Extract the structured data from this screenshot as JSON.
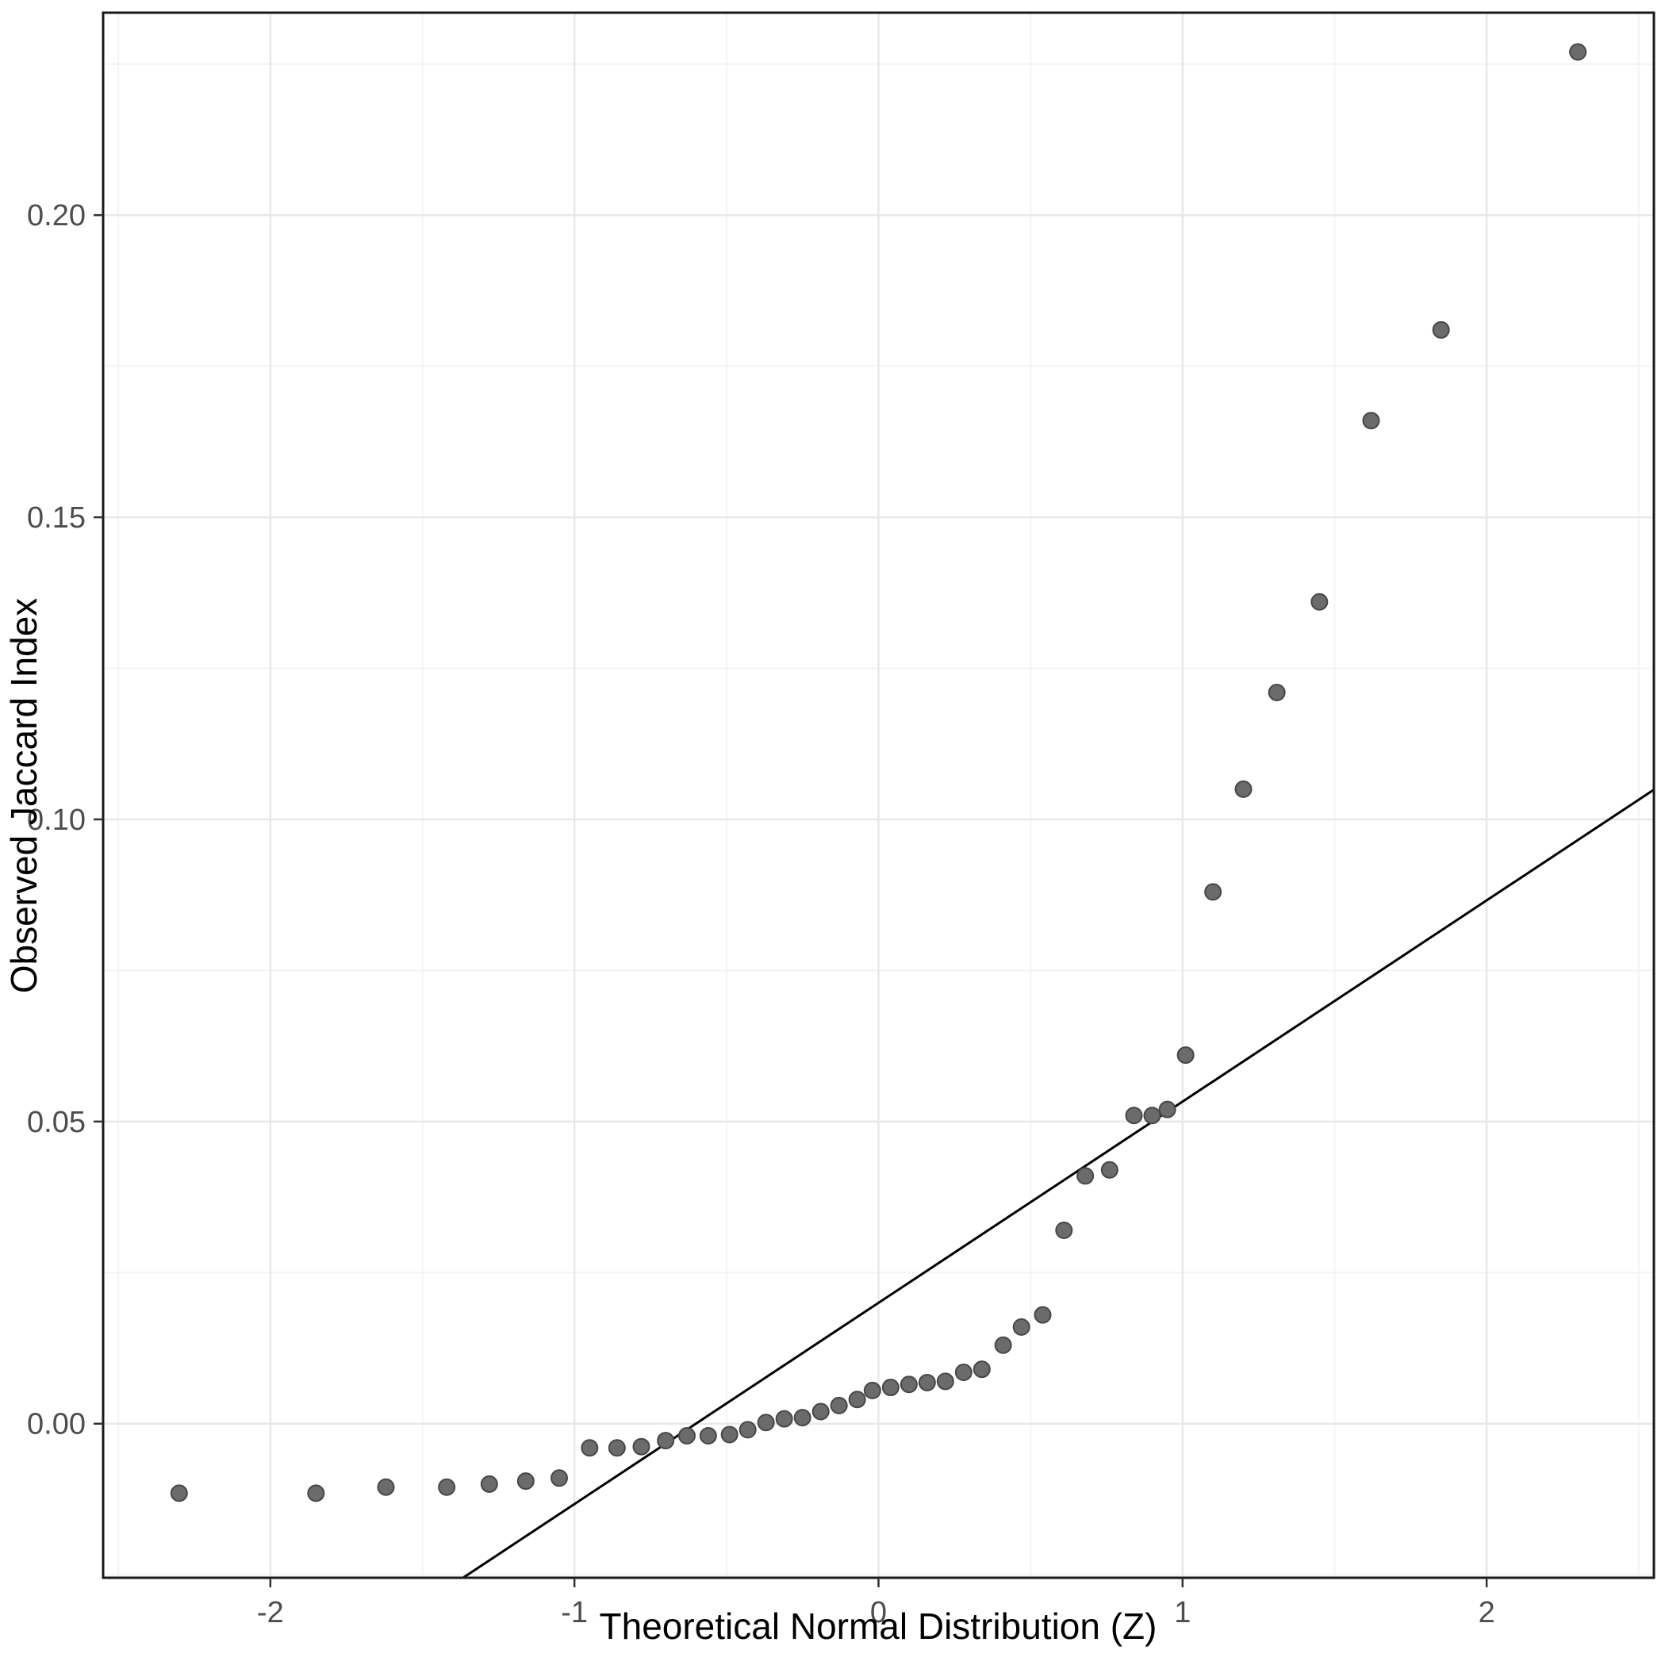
{
  "chart_data": {
    "type": "scatter",
    "title": "",
    "xlabel": "Theoretical Normal Distribution (Z)",
    "ylabel": "Observed Jaccard Index",
    "xlim": [
      -2.55,
      2.55
    ],
    "ylim": [
      -0.0255,
      0.2335
    ],
    "grid": true,
    "legend": "none",
    "x_ticks": [
      {
        "value": -2,
        "label": "-2"
      },
      {
        "value": -1,
        "label": "-1"
      },
      {
        "value": 0,
        "label": "0"
      },
      {
        "value": 1,
        "label": "1"
      },
      {
        "value": 2,
        "label": "2"
      }
    ],
    "y_ticks": [
      {
        "value": 0.0,
        "label": "0.00"
      },
      {
        "value": 0.05,
        "label": "0.05"
      },
      {
        "value": 0.1,
        "label": "0.10"
      },
      {
        "value": 0.15,
        "label": "0.15"
      },
      {
        "value": 0.2,
        "label": "0.20"
      }
    ],
    "x_minor_ticks": [
      -2.5,
      -1.5,
      -0.5,
      0.5,
      1.5,
      2.5
    ],
    "y_minor_ticks": [
      -0.025,
      0.025,
      0.075,
      0.125,
      0.175,
      0.225
    ],
    "reference_line": {
      "slope": 0.0333,
      "intercept": 0.02,
      "color": "#000000",
      "width": 3
    },
    "points": [
      [
        -2.3,
        -0.0115
      ],
      [
        -1.85,
        -0.0115
      ],
      [
        -1.62,
        -0.0105
      ],
      [
        -1.42,
        -0.0105
      ],
      [
        -1.28,
        -0.01
      ],
      [
        -1.16,
        -0.0095
      ],
      [
        -1.05,
        -0.009
      ],
      [
        -0.95,
        -0.004
      ],
      [
        -0.86,
        -0.004
      ],
      [
        -0.78,
        -0.0038
      ],
      [
        -0.7,
        -0.0028
      ],
      [
        -0.63,
        -0.002
      ],
      [
        -0.56,
        -0.002
      ],
      [
        -0.49,
        -0.0018
      ],
      [
        -0.43,
        -0.001
      ],
      [
        -0.37,
        0.0002
      ],
      [
        -0.31,
        0.0008
      ],
      [
        -0.25,
        0.001
      ],
      [
        -0.19,
        0.002
      ],
      [
        -0.13,
        0.003
      ],
      [
        -0.07,
        0.004
      ],
      [
        -0.02,
        0.0055
      ],
      [
        0.04,
        0.006
      ],
      [
        0.1,
        0.0065
      ],
      [
        0.16,
        0.0068
      ],
      [
        0.22,
        0.007
      ],
      [
        0.28,
        0.0085
      ],
      [
        0.34,
        0.009
      ],
      [
        0.41,
        0.013
      ],
      [
        0.47,
        0.016
      ],
      [
        0.54,
        0.018
      ],
      [
        0.61,
        0.032
      ],
      [
        0.68,
        0.041
      ],
      [
        0.76,
        0.042
      ],
      [
        0.84,
        0.051
      ],
      [
        0.9,
        0.051
      ],
      [
        0.95,
        0.052
      ],
      [
        1.01,
        0.061
      ],
      [
        1.1,
        0.088
      ],
      [
        1.2,
        0.105
      ],
      [
        1.31,
        0.121
      ],
      [
        1.45,
        0.136
      ],
      [
        1.62,
        0.166
      ],
      [
        1.85,
        0.181
      ],
      [
        2.3,
        0.227
      ]
    ],
    "point_color": "#6b6b6b",
    "point_stroke": "#474747",
    "background": "#ffffff",
    "grid_major_color": "#e8e8e8",
    "grid_minor_color": "#f4f4f4",
    "panel_border_color": "#1a1a1a",
    "axis_text_color": "#4d4d4d",
    "tick_mark_color": "#333333"
  }
}
